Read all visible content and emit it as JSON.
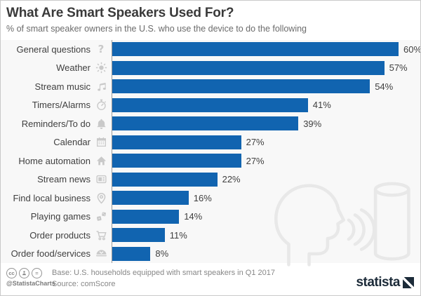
{
  "header": {
    "title": "What Are Smart Speakers Used For?",
    "subtitle": "% of smart speaker owners in the U.S. who use the device to do the following"
  },
  "chart_data": {
    "type": "bar",
    "orientation": "horizontal",
    "title": "What Are Smart Speakers Used For?",
    "subtitle": "% of smart speaker owners in the U.S. who use the device to do the following",
    "categories": [
      "General questions",
      "Weather",
      "Stream music",
      "Timers/Alarms",
      "Reminders/To do",
      "Calendar",
      "Home automation",
      "Stream news",
      "Find local business",
      "Playing games",
      "Order products",
      "Order food/services"
    ],
    "values": [
      60,
      57,
      54,
      41,
      39,
      27,
      27,
      22,
      16,
      14,
      11,
      8
    ],
    "unit": "%",
    "xlim": [
      0,
      60
    ],
    "grid": false,
    "value_labels": "end-of-bar",
    "bar_color": "#1164b0",
    "icons": [
      "question-icon",
      "sun-icon",
      "music-note-icon",
      "stopwatch-icon",
      "bell-icon",
      "calendar-icon",
      "house-icon",
      "newspaper-icon",
      "location-pin-icon",
      "dice-icon",
      "shopping-cart-icon",
      "covered-dish-icon"
    ],
    "watermark": "person-speaking-to-smart-speaker-outline"
  },
  "footer": {
    "license_icons": [
      "cc-icon",
      "attribution-icon",
      "nd-icon"
    ],
    "cc_label": "cc",
    "nd_label": "=",
    "license_handle": "@StatistaCharts",
    "base_note": "Base: U.S. households equipped with smart speakers in Q1 2017",
    "source_note": "Source: comScore",
    "brand": "statista"
  },
  "colors": {
    "bar": "#1164b0",
    "title_text": "#3a3a3a",
    "subtitle_text": "#6b6b6b",
    "label_text": "#3f3f3f",
    "icon_gray": "#c9c9c9",
    "axis_line": "#9c9c9c",
    "chart_background": "#f8f8f8",
    "watermark_gray": "#e8e8e8",
    "brand_navy": "#1c2b39"
  }
}
